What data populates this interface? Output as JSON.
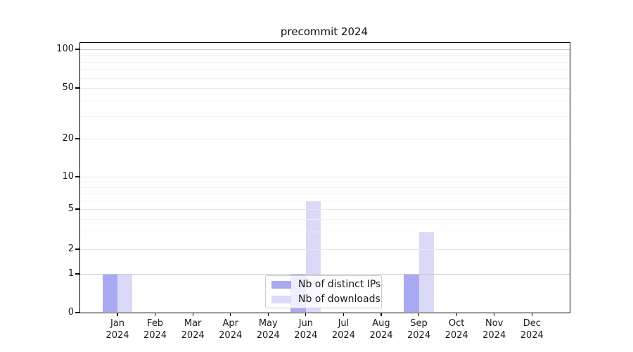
{
  "chart_data": {
    "type": "bar",
    "title": "precommit 2024",
    "categories": [
      "Jan",
      "Feb",
      "Mar",
      "Apr",
      "May",
      "Jun",
      "Jul",
      "Aug",
      "Sep",
      "Oct",
      "Nov",
      "Dec"
    ],
    "x_year_label": "2024",
    "series": [
      {
        "name": "Nb of distinct IPs",
        "color": "#aaaaf2",
        "values": [
          1,
          0,
          0,
          0,
          0,
          1,
          0,
          0,
          1,
          0,
          0,
          0
        ]
      },
      {
        "name": "Nb of downloads",
        "color": "#dadaf8",
        "values": [
          1,
          0,
          0,
          0,
          0,
          6,
          0,
          0,
          3,
          0,
          0,
          0
        ]
      }
    ],
    "y_axis": {
      "scale": "symlog",
      "ticks": [
        0,
        1,
        2,
        5,
        10,
        20,
        50,
        100
      ],
      "major_gridlines": [
        1,
        100
      ],
      "mid_gridlines": [
        2,
        5,
        10,
        20,
        50
      ],
      "minor_gridlines": [
        3,
        4,
        6,
        7,
        8,
        9,
        30,
        40,
        60,
        70,
        80,
        90
      ],
      "range": [
        0,
        115
      ]
    },
    "legend": {
      "items": [
        "Nb of distinct IPs",
        "Nb of downloads"
      ],
      "position": "inside-bottom-center"
    },
    "grid": true
  },
  "colors": {
    "background": "#ffffff",
    "axis": "#000000",
    "text": "#1a1a1a",
    "grid_major": "#c9c9c9",
    "grid_mid": "#e7e7e7",
    "grid_minor": "#f2f2f2",
    "legend_border": "#cccccc"
  }
}
